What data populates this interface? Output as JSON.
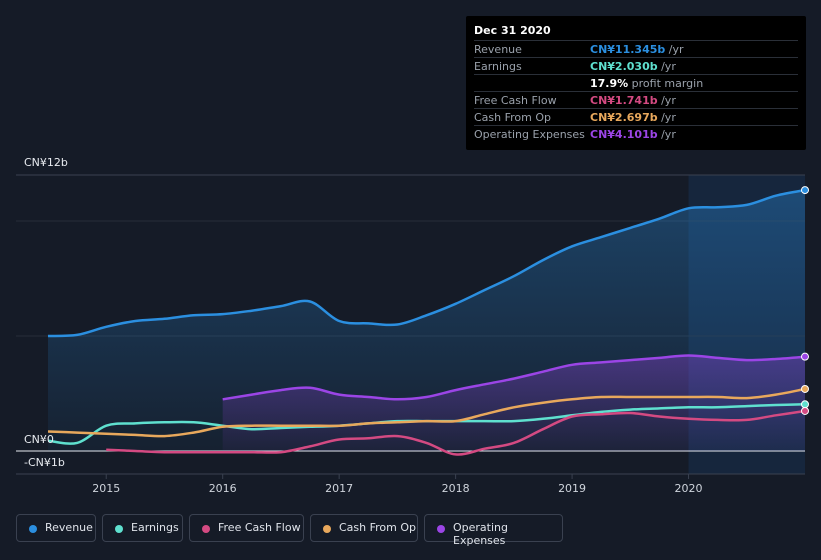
{
  "chart_data": {
    "type": "area",
    "title": "",
    "y_axis_labels": {
      "top": "CN¥12b",
      "zero": "CN¥0",
      "bottom": "-CN¥1b"
    },
    "ylim": [
      -1,
      12
    ],
    "xlim": [
      2014.5,
      2021.0
    ],
    "x_ticks": [
      {
        "label": "2015",
        "value": 2015
      },
      {
        "label": "2016",
        "value": 2016
      },
      {
        "label": "2017",
        "value": 2017
      },
      {
        "label": "2018",
        "value": 2018
      },
      {
        "label": "2019",
        "value": 2019
      },
      {
        "label": "2020",
        "value": 2020
      }
    ],
    "highlight_from": 2020,
    "series": [
      {
        "name": "Revenue",
        "color": "#2b8fe0",
        "fill": true,
        "x": [
          2014.5,
          2014.75,
          2015.0,
          2015.25,
          2015.5,
          2015.75,
          2016.0,
          2016.25,
          2016.5,
          2016.75,
          2017.0,
          2017.25,
          2017.5,
          2017.75,
          2018.0,
          2018.25,
          2018.5,
          2018.75,
          2019.0,
          2019.25,
          2019.5,
          2019.75,
          2020.0,
          2020.25,
          2020.5,
          2020.75,
          2021.0
        ],
        "values": [
          5.0,
          5.05,
          5.4,
          5.65,
          5.75,
          5.9,
          5.95,
          6.1,
          6.3,
          6.5,
          5.65,
          5.55,
          5.5,
          5.9,
          6.4,
          7.0,
          7.6,
          8.3,
          8.9,
          9.3,
          9.7,
          10.1,
          10.55,
          10.6,
          10.7,
          11.1,
          11.345
        ]
      },
      {
        "name": "Earnings",
        "color": "#5fe0cf",
        "fill": false,
        "x": [
          2014.5,
          2014.75,
          2015.0,
          2015.25,
          2015.5,
          2015.75,
          2016.0,
          2016.25,
          2016.5,
          2016.75,
          2017.0,
          2017.25,
          2017.5,
          2017.75,
          2018.0,
          2018.25,
          2018.5,
          2018.75,
          2019.0,
          2019.25,
          2019.5,
          2019.75,
          2020.0,
          2020.25,
          2020.5,
          2020.75,
          2021.0
        ],
        "values": [
          0.45,
          0.35,
          1.1,
          1.2,
          1.25,
          1.25,
          1.1,
          0.95,
          1.0,
          1.05,
          1.1,
          1.2,
          1.3,
          1.3,
          1.3,
          1.3,
          1.3,
          1.4,
          1.55,
          1.7,
          1.8,
          1.85,
          1.9,
          1.9,
          1.95,
          2.0,
          2.03
        ]
      },
      {
        "name": "Free Cash Flow",
        "color": "#d44a82",
        "fill": false,
        "x": [
          2015.0,
          2015.25,
          2015.5,
          2015.75,
          2016.0,
          2016.25,
          2016.5,
          2016.75,
          2017.0,
          2017.25,
          2017.5,
          2017.75,
          2018.0,
          2018.25,
          2018.5,
          2018.75,
          2019.0,
          2019.25,
          2019.5,
          2019.75,
          2020.0,
          2020.25,
          2020.5,
          2020.75,
          2021.0
        ],
        "values": [
          0.05,
          0.0,
          -0.05,
          -0.05,
          -0.05,
          -0.05,
          -0.05,
          0.2,
          0.5,
          0.55,
          0.65,
          0.35,
          -0.15,
          0.1,
          0.35,
          0.95,
          1.5,
          1.6,
          1.65,
          1.5,
          1.4,
          1.35,
          1.35,
          1.55,
          1.741
        ]
      },
      {
        "name": "Cash From Op",
        "color": "#e8a85c",
        "fill": false,
        "x": [
          2014.5,
          2014.75,
          2015.0,
          2015.25,
          2015.5,
          2015.75,
          2016.0,
          2016.25,
          2016.5,
          2016.75,
          2017.0,
          2017.25,
          2017.5,
          2017.75,
          2018.0,
          2018.25,
          2018.5,
          2018.75,
          2019.0,
          2019.25,
          2019.5,
          2019.75,
          2020.0,
          2020.25,
          2020.5,
          2020.75,
          2021.0
        ],
        "values": [
          0.85,
          0.8,
          0.75,
          0.7,
          0.65,
          0.8,
          1.05,
          1.1,
          1.1,
          1.1,
          1.1,
          1.2,
          1.25,
          1.3,
          1.3,
          1.6,
          1.9,
          2.1,
          2.25,
          2.35,
          2.35,
          2.35,
          2.35,
          2.35,
          2.3,
          2.45,
          2.697
        ]
      },
      {
        "name": "Operating Expenses",
        "color": "#9b45e6",
        "fill": true,
        "x": [
          2016.0,
          2016.25,
          2016.5,
          2016.75,
          2017.0,
          2017.25,
          2017.5,
          2017.75,
          2018.0,
          2018.25,
          2018.5,
          2018.75,
          2019.0,
          2019.25,
          2019.5,
          2019.75,
          2020.0,
          2020.25,
          2020.5,
          2020.75,
          2021.0
        ],
        "values": [
          2.25,
          2.45,
          2.65,
          2.75,
          2.45,
          2.35,
          2.25,
          2.35,
          2.65,
          2.9,
          3.15,
          3.45,
          3.75,
          3.85,
          3.95,
          4.05,
          4.15,
          4.05,
          3.95,
          4.0,
          4.101
        ]
      }
    ]
  },
  "tooltip": {
    "date": "Dec 31 2020",
    "rows": [
      {
        "label": "Revenue",
        "value": "CN¥11.345b",
        "unit": " /yr",
        "color": "#2b8fe0"
      },
      {
        "label": "Earnings",
        "value": "CN¥2.030b",
        "unit": " /yr",
        "color": "#5fe0cf"
      },
      {
        "label": "",
        "value": "17.9%",
        "unit": " profit margin",
        "color": "#ffffff"
      },
      {
        "label": "Free Cash Flow",
        "value": "CN¥1.741b",
        "unit": " /yr",
        "color": "#d44a82"
      },
      {
        "label": "Cash From Op",
        "value": "CN¥2.697b",
        "unit": " /yr",
        "color": "#e8a85c"
      },
      {
        "label": "Operating Expenses",
        "value": "CN¥4.101b",
        "unit": " /yr",
        "color": "#9b45e6"
      }
    ]
  },
  "legend": [
    {
      "label": "Revenue",
      "color": "#2b8fe0"
    },
    {
      "label": "Earnings",
      "color": "#5fe0cf"
    },
    {
      "label": "Free Cash Flow",
      "color": "#d44a82"
    },
    {
      "label": "Cash From Op",
      "color": "#e8a85c"
    },
    {
      "label": "Operating Expenses",
      "color": "#9b45e6"
    }
  ]
}
